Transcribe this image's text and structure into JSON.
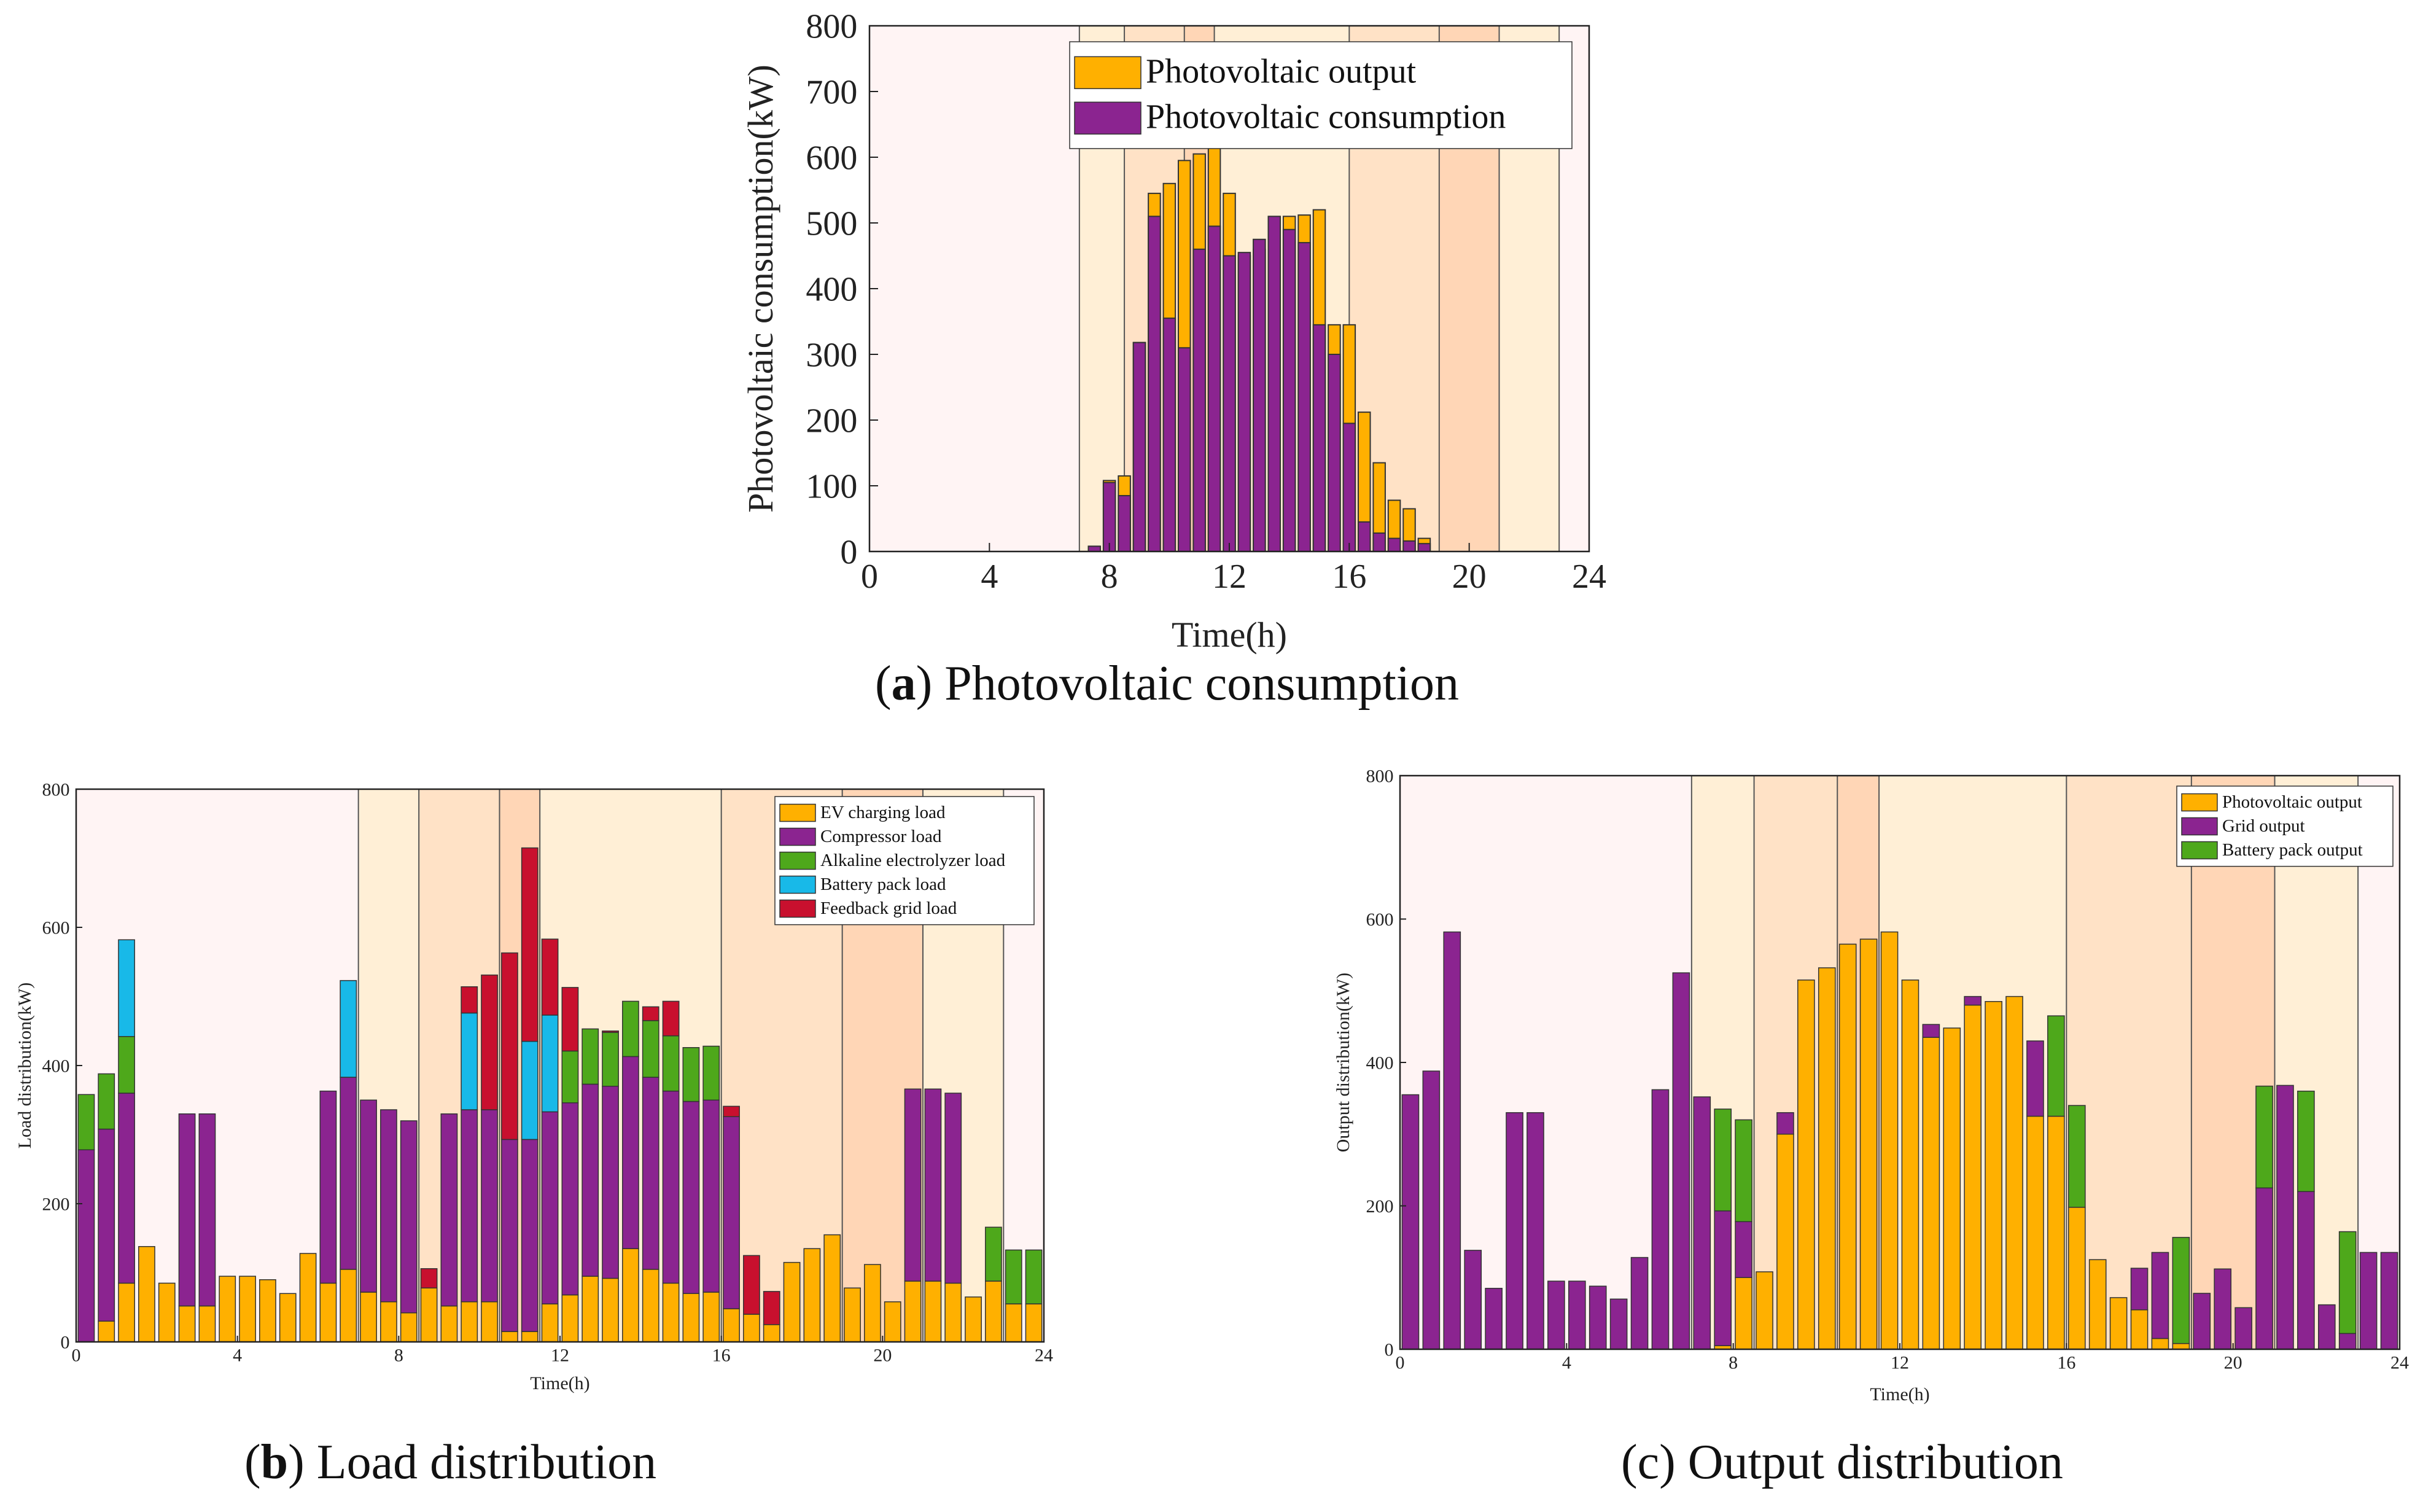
{
  "colors": {
    "pv": "#FFB000",
    "grid": "#8B2490",
    "battery": "#4EA81B",
    "bat_load": "#18B9E8",
    "feedback": "#C8102E",
    "zone_valley": "#FFF4F4",
    "zone_flat": "#FFEFD6",
    "zone_peak": "#FFE2C6",
    "zone_sharp": "#FFD6B6"
  },
  "captions": [
    {
      "letter": "a",
      "text": "Photovoltaic consumption"
    },
    {
      "letter": "b",
      "text": "Load distribution"
    },
    {
      "letter": "c",
      "text": "Output distribution"
    }
  ],
  "chart_data": [
    {
      "type": "bar",
      "title": "Photovoltaic consumption",
      "xlabel": "Time(h)",
      "ylabel": "Photovoltaic consumption(kW)",
      "xlim": [
        0,
        24
      ],
      "ylim": [
        0,
        800
      ],
      "xticks": [
        0,
        4,
        8,
        12,
        16,
        20,
        24
      ],
      "yticks": [
        0,
        100,
        200,
        300,
        400,
        500,
        600,
        700,
        800
      ],
      "bar_width_h": 0.4,
      "legend": {
        "placement": "top-right",
        "entries": [
          "Photovoltaic output",
          "Photovoltaic consumption"
        ]
      },
      "zones": [
        {
          "from": 0,
          "to": 7,
          "level": "zone_valley"
        },
        {
          "from": 7,
          "to": 8.5,
          "level": "zone_flat"
        },
        {
          "from": 8.5,
          "to": 10.5,
          "level": "zone_peak"
        },
        {
          "from": 10.5,
          "to": 11.5,
          "level": "zone_sharp"
        },
        {
          "from": 11.5,
          "to": 16,
          "level": "zone_flat"
        },
        {
          "from": 16,
          "to": 19,
          "level": "zone_peak"
        },
        {
          "from": 19,
          "to": 21,
          "level": "zone_sharp"
        },
        {
          "from": 21,
          "to": 23,
          "level": "zone_flat"
        },
        {
          "from": 23,
          "to": 24,
          "level": "zone_valley"
        }
      ],
      "x": [
        7.5,
        8,
        8.5,
        9,
        9.5,
        10,
        10.5,
        11,
        11.5,
        12,
        12.5,
        13,
        13.5,
        14,
        14.5,
        15,
        15.5,
        16,
        16.5,
        17,
        17.5,
        18,
        18.5
      ],
      "series": [
        {
          "name": "Photovoltaic output",
          "color": "pv",
          "values": [
            8,
            108,
            115,
            318,
            545,
            560,
            595,
            605,
            615,
            545,
            450,
            460,
            475,
            510,
            512,
            520,
            345,
            345,
            212,
            135,
            78,
            65,
            20
          ]
        },
        {
          "name": "Photovoltaic consumption",
          "color": "grid",
          "values": [
            8,
            105,
            85,
            318,
            510,
            355,
            310,
            460,
            495,
            450,
            455,
            475,
            510,
            490,
            470,
            345,
            300,
            195,
            45,
            28,
            20,
            16,
            12
          ]
        }
      ]
    },
    {
      "type": "bar",
      "stacked": true,
      "title": "Load distribution",
      "xlabel": "Time(h)",
      "ylabel": "Load distribution(kW)",
      "xlim": [
        0,
        24
      ],
      "ylim": [
        0,
        800
      ],
      "xticks": [
        0,
        4,
        8,
        12,
        16,
        20,
        24
      ],
      "yticks": [
        0,
        200,
        400,
        600,
        800
      ],
      "bar_width_h": 0.4,
      "legend": {
        "placement": "top-right",
        "entries": [
          "EV charging load",
          "Compressor load",
          "Alkaline electrolyzer load",
          "Battery pack load",
          "Feedback grid load"
        ]
      },
      "zones": [
        {
          "from": 0,
          "to": 7,
          "level": "zone_valley"
        },
        {
          "from": 7,
          "to": 8.5,
          "level": "zone_flat"
        },
        {
          "from": 8.5,
          "to": 10.5,
          "level": "zone_peak"
        },
        {
          "from": 10.5,
          "to": 11.5,
          "level": "zone_sharp"
        },
        {
          "from": 11.5,
          "to": 16,
          "level": "zone_flat"
        },
        {
          "from": 16,
          "to": 19,
          "level": "zone_peak"
        },
        {
          "from": 19,
          "to": 21,
          "level": "zone_sharp"
        },
        {
          "from": 21,
          "to": 23,
          "level": "zone_flat"
        },
        {
          "from": 23,
          "to": 24,
          "level": "zone_valley"
        }
      ],
      "x": [
        0.25,
        0.75,
        1.25,
        1.75,
        2.25,
        2.75,
        3.25,
        3.75,
        4.25,
        4.75,
        5.25,
        5.75,
        6.25,
        6.75,
        7.25,
        7.75,
        8.25,
        8.75,
        9.25,
        9.75,
        10.25,
        10.75,
        11.25,
        11.75,
        12.25,
        12.75,
        13.25,
        13.75,
        14.25,
        14.75,
        15.25,
        15.75,
        16.25,
        16.75,
        17.25,
        17.75,
        18.25,
        18.75,
        19.25,
        19.75,
        20.25,
        20.75,
        21.25,
        21.75,
        22.25,
        22.75,
        23.25,
        23.75
      ],
      "series": [
        {
          "name": "EV charging load",
          "color": "pv",
          "values": [
            0,
            30,
            85,
            138,
            85,
            52,
            52,
            95,
            95,
            90,
            70,
            128,
            85,
            105,
            72,
            58,
            42,
            78,
            52,
            58,
            58,
            15,
            15,
            55,
            68,
            95,
            92,
            135,
            105,
            85,
            70,
            72,
            48,
            40,
            25,
            115,
            135,
            155,
            78,
            112,
            58,
            88,
            88,
            85,
            65,
            88,
            55,
            55
          ]
        },
        {
          "name": "Compressor load",
          "color": "grid",
          "values": [
            278,
            278,
            275,
            0,
            0,
            278,
            278,
            0,
            0,
            0,
            0,
            0,
            278,
            278,
            278,
            278,
            278,
            0,
            278,
            278,
            278,
            278,
            278,
            278,
            278,
            278,
            278,
            278,
            278,
            278,
            278,
            278,
            278,
            0,
            0,
            0,
            0,
            0,
            0,
            0,
            0,
            278,
            278,
            275,
            0,
            0,
            0,
            0
          ]
        },
        {
          "name": "Alkaline electrolyzer load",
          "color": "battery",
          "values": [
            80,
            80,
            82,
            0,
            0,
            0,
            0,
            0,
            0,
            0,
            0,
            0,
            0,
            0,
            0,
            0,
            0,
            0,
            0,
            0,
            0,
            0,
            0,
            0,
            75,
            80,
            78,
            80,
            82,
            80,
            78,
            78,
            0,
            0,
            0,
            0,
            0,
            0,
            0,
            0,
            0,
            0,
            0,
            0,
            0,
            78,
            78,
            78
          ]
        },
        {
          "name": "Battery pack load",
          "color": "bat_load",
          "values": [
            0,
            0,
            140,
            0,
            0,
            0,
            0,
            0,
            0,
            0,
            0,
            0,
            0,
            140,
            0,
            0,
            0,
            0,
            0,
            140,
            0,
            0,
            142,
            140,
            0,
            0,
            0,
            0,
            0,
            0,
            0,
            0,
            0,
            0,
            0,
            0,
            0,
            0,
            0,
            0,
            0,
            0,
            0,
            0,
            0,
            0,
            0,
            0
          ]
        },
        {
          "name": "Feedback grid load",
          "color": "feedback",
          "values": [
            0,
            0,
            0,
            0,
            0,
            0,
            0,
            0,
            0,
            0,
            0,
            0,
            0,
            0,
            0,
            0,
            0,
            28,
            0,
            38,
            195,
            270,
            280,
            110,
            92,
            0,
            2,
            0,
            20,
            50,
            0,
            0,
            15,
            85,
            48,
            0,
            0,
            0,
            0,
            0,
            0,
            0,
            0,
            0,
            0,
            0,
            0,
            0
          ]
        }
      ]
    },
    {
      "type": "bar",
      "stacked": true,
      "title": "Output distribution",
      "xlabel": "Time(h)",
      "ylabel": "Output distribution(kW)",
      "xlim": [
        0,
        24
      ],
      "ylim": [
        0,
        800
      ],
      "xticks": [
        0,
        4,
        8,
        12,
        16,
        20,
        24
      ],
      "yticks": [
        0,
        200,
        400,
        600,
        800
      ],
      "bar_width_h": 0.4,
      "legend": {
        "placement": "top-right",
        "entries": [
          "Photovoltaic output",
          "Grid output",
          "Battery pack output"
        ]
      },
      "zones": [
        {
          "from": 0,
          "to": 7,
          "level": "zone_valley"
        },
        {
          "from": 7,
          "to": 8.5,
          "level": "zone_flat"
        },
        {
          "from": 8.5,
          "to": 10.5,
          "level": "zone_peak"
        },
        {
          "from": 10.5,
          "to": 11.5,
          "level": "zone_sharp"
        },
        {
          "from": 11.5,
          "to": 16,
          "level": "zone_flat"
        },
        {
          "from": 16,
          "to": 19,
          "level": "zone_peak"
        },
        {
          "from": 19,
          "to": 21,
          "level": "zone_sharp"
        },
        {
          "from": 21,
          "to": 23,
          "level": "zone_flat"
        },
        {
          "from": 23,
          "to": 24,
          "level": "zone_valley"
        }
      ],
      "x": [
        0.25,
        0.75,
        1.25,
        1.75,
        2.25,
        2.75,
        3.25,
        3.75,
        4.25,
        4.75,
        5.25,
        5.75,
        6.25,
        6.75,
        7.25,
        7.75,
        8.25,
        8.75,
        9.25,
        9.75,
        10.25,
        10.75,
        11.25,
        11.75,
        12.25,
        12.75,
        13.25,
        13.75,
        14.25,
        14.75,
        15.25,
        15.75,
        16.25,
        16.75,
        17.25,
        17.75,
        18.25,
        18.75,
        19.25,
        19.75,
        20.25,
        20.75,
        21.25,
        21.75,
        22.25,
        22.75,
        23.25,
        23.75
      ],
      "series": [
        {
          "name": "Photovoltaic output",
          "color": "pv",
          "values": [
            0,
            0,
            0,
            0,
            0,
            0,
            0,
            0,
            0,
            0,
            0,
            0,
            0,
            0,
            0,
            5,
            100,
            108,
            300,
            515,
            532,
            565,
            572,
            582,
            515,
            435,
            448,
            480,
            485,
            492,
            325,
            325,
            198,
            125,
            72,
            55,
            15,
            8,
            0,
            0,
            0,
            0,
            0,
            0,
            0,
            0,
            0,
            0
          ]
        },
        {
          "name": "Grid output",
          "color": "grid",
          "values": [
            355,
            388,
            582,
            138,
            85,
            330,
            330,
            95,
            95,
            88,
            70,
            128,
            362,
            525,
            352,
            188,
            78,
            0,
            30,
            0,
            0,
            0,
            0,
            0,
            0,
            18,
            0,
            12,
            0,
            0,
            105,
            0,
            0,
            0,
            0,
            58,
            120,
            0,
            78,
            112,
            58,
            225,
            368,
            220,
            62,
            22,
            135,
            135
          ]
        },
        {
          "name": "Battery pack output",
          "color": "battery",
          "values": [
            0,
            0,
            0,
            0,
            0,
            0,
            0,
            0,
            0,
            0,
            0,
            0,
            0,
            0,
            0,
            142,
            142,
            0,
            0,
            0,
            0,
            0,
            0,
            0,
            0,
            0,
            0,
            0,
            0,
            0,
            0,
            140,
            142,
            0,
            0,
            0,
            0,
            148,
            0,
            0,
            0,
            142,
            0,
            140,
            0,
            142,
            0,
            0
          ]
        }
      ]
    }
  ]
}
